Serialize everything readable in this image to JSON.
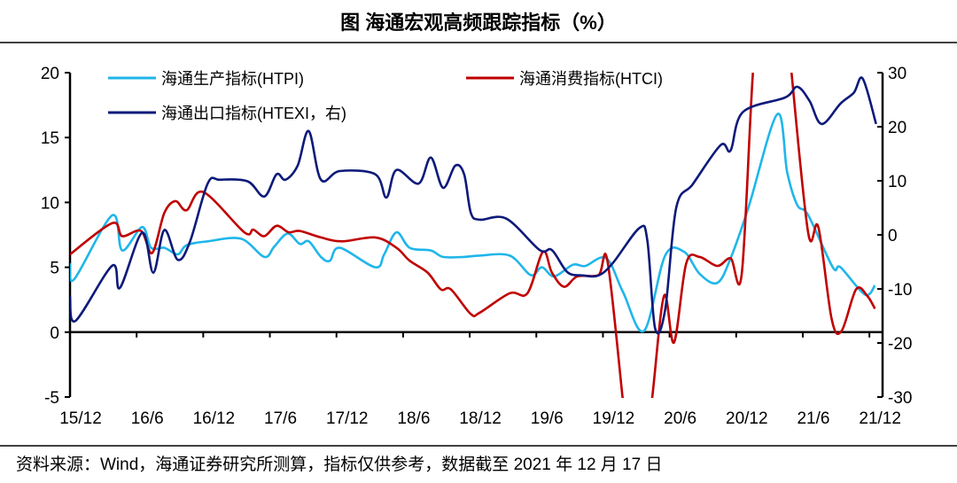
{
  "title": "图  海通宏观高频跟踪指标（%）",
  "source": "资料来源：Wind，海通证券研究所测算，指标仅供参考，数据截至 2021 年 12 月 17 日",
  "chart_data": {
    "type": "line",
    "title": "图  海通宏观高频跟踪指标（%）",
    "x_unit": "months since 2015-12",
    "xlim": [
      0,
      72.6
    ],
    "x_ticks": [
      0,
      6,
      12,
      18,
      24,
      30,
      36,
      42,
      48,
      54,
      60,
      66,
      72
    ],
    "x_tick_labels": [
      "15/12",
      "16/6",
      "16/12",
      "17/6",
      "17/12",
      "18/6",
      "18/12",
      "19/6",
      "19/12",
      "20/6",
      "20/12",
      "21/6",
      "21/12"
    ],
    "y_left": {
      "lim": [
        -5,
        20
      ],
      "ticks": [
        -5,
        0,
        5,
        10,
        15,
        20
      ],
      "tick_labels": [
        "-5",
        "0",
        "5",
        "10",
        "15",
        "20"
      ]
    },
    "y_right": {
      "lim": [
        -30,
        30
      ],
      "ticks": [
        -30,
        -20,
        -10,
        0,
        10,
        20,
        30
      ],
      "tick_labels": [
        "-30",
        "-20",
        "-10",
        "0",
        "10",
        "20",
        "30"
      ]
    },
    "legend_position": "top",
    "grid": false,
    "series": [
      {
        "name": "海通生产指标(HTPI)",
        "axis": "left",
        "color": "#1fb6ea",
        "points": [
          [
            0,
            5.3
          ],
          [
            0.4,
            4.1
          ],
          [
            3.8,
            9.0
          ],
          [
            4.7,
            6.3
          ],
          [
            6.5,
            8.1
          ],
          [
            7.3,
            6.5
          ],
          [
            8.5,
            6.5
          ],
          [
            9.7,
            6.0
          ],
          [
            10.5,
            6.7
          ],
          [
            12.4,
            7.0
          ],
          [
            15.4,
            7.2
          ],
          [
            17.5,
            5.8
          ],
          [
            18.4,
            6.6
          ],
          [
            19.6,
            7.6
          ],
          [
            20.7,
            6.8
          ],
          [
            21.5,
            7.0
          ],
          [
            22.6,
            5.8
          ],
          [
            23.4,
            5.5
          ],
          [
            24.3,
            6.5
          ],
          [
            27.5,
            5.0
          ],
          [
            28.3,
            6.0
          ],
          [
            29.4,
            7.7
          ],
          [
            30.6,
            6.5
          ],
          [
            32.5,
            6.3
          ],
          [
            33.6,
            5.8
          ],
          [
            35.5,
            5.8
          ],
          [
            36.9,
            5.9
          ],
          [
            39.6,
            5.9
          ],
          [
            41.5,
            4.4
          ],
          [
            42.5,
            5.0
          ],
          [
            43.6,
            4.3
          ],
          [
            45.3,
            5.2
          ],
          [
            46.4,
            5.1
          ],
          [
            48.3,
            5.7
          ],
          [
            49.8,
            3.1
          ],
          [
            51.7,
            0.1
          ],
          [
            53.6,
            5.9
          ],
          [
            55.3,
            6.2
          ],
          [
            56.7,
            4.5
          ],
          [
            58.3,
            3.8
          ],
          [
            59.5,
            5.7
          ],
          [
            61.1,
            9.6
          ],
          [
            63.7,
            16.8
          ],
          [
            64.6,
            12.3
          ],
          [
            65.5,
            9.8
          ],
          [
            66.5,
            9.0
          ],
          [
            68.7,
            5.0
          ],
          [
            69.4,
            5.0
          ],
          [
            71.6,
            2.9
          ],
          [
            72.5,
            3.6
          ]
        ]
      },
      {
        "name": "海通消费指标(HTCI)",
        "axis": "left",
        "color": "#c00000",
        "points": [
          [
            0,
            6.0
          ],
          [
            3.8,
            8.4
          ],
          [
            4.7,
            7.4
          ],
          [
            6.4,
            7.8
          ],
          [
            7.4,
            6.1
          ],
          [
            8.5,
            9.2
          ],
          [
            9.5,
            10.1
          ],
          [
            10.5,
            9.4
          ],
          [
            12.0,
            10.8
          ],
          [
            15.7,
            7.7
          ],
          [
            16.5,
            7.9
          ],
          [
            17.5,
            7.4
          ],
          [
            18.6,
            8.2
          ],
          [
            19.7,
            7.7
          ],
          [
            20.7,
            7.8
          ],
          [
            22.6,
            7.3
          ],
          [
            24.5,
            7.0
          ],
          [
            27.5,
            7.3
          ],
          [
            29.4,
            6.5
          ],
          [
            30.6,
            5.5
          ],
          [
            32.2,
            4.6
          ],
          [
            33.4,
            3.3
          ],
          [
            34.3,
            3.3
          ],
          [
            36.1,
            1.4
          ],
          [
            36.9,
            1.5
          ],
          [
            39.6,
            3.0
          ],
          [
            41.2,
            3.0
          ],
          [
            42.6,
            6.2
          ],
          [
            43.4,
            4.6
          ],
          [
            44.5,
            3.5
          ],
          [
            45.7,
            4.3
          ],
          [
            47.6,
            4.4
          ],
          [
            48.4,
            5.5
          ],
          [
            49.8,
            -5.3
          ],
          [
            50.6,
            -12
          ],
          [
            51.4,
            -12
          ],
          [
            52.4,
            -5.3
          ],
          [
            53.5,
            2.8
          ],
          [
            54.4,
            -0.8
          ],
          [
            55.5,
            5.3
          ],
          [
            56.7,
            5.8
          ],
          [
            58.3,
            5.1
          ],
          [
            59.5,
            5.7
          ],
          [
            60.5,
            4.5
          ],
          [
            61.5,
            19.9
          ],
          [
            62.5,
            30
          ],
          [
            64,
            30
          ],
          [
            65.0,
            19.9
          ],
          [
            66.5,
            7.6
          ],
          [
            67.4,
            8.1
          ],
          [
            68.6,
            1.0
          ],
          [
            69.5,
            0.1
          ],
          [
            70.8,
            3.3
          ],
          [
            71.8,
            2.8
          ],
          [
            72.5,
            1.8
          ]
        ]
      },
      {
        "name": "海通出口指标(HTEXI，右)",
        "axis": "right",
        "color": "#0d1a7a",
        "points": [
          [
            0,
            -11.4
          ],
          [
            0.5,
            -15.9
          ],
          [
            3.8,
            -5.7
          ],
          [
            4.5,
            -9.8
          ],
          [
            6.5,
            0.4
          ],
          [
            7.5,
            -7.0
          ],
          [
            8.5,
            0.9
          ],
          [
            9.7,
            -4.6
          ],
          [
            10.8,
            -1.3
          ],
          [
            12.4,
            9.5
          ],
          [
            13.5,
            10.2
          ],
          [
            16.0,
            9.9
          ],
          [
            17.5,
            7.1
          ],
          [
            18.6,
            11.2
          ],
          [
            19.4,
            10.2
          ],
          [
            20.5,
            12.8
          ],
          [
            21.5,
            19.2
          ],
          [
            22.6,
            10.2
          ],
          [
            24.3,
            11.8
          ],
          [
            27.5,
            11.2
          ],
          [
            28.5,
            6.9
          ],
          [
            29.4,
            12.0
          ],
          [
            31.4,
            9.5
          ],
          [
            32.5,
            14.3
          ],
          [
            33.6,
            8.7
          ],
          [
            34.7,
            12.8
          ],
          [
            35.5,
            11.2
          ],
          [
            36.1,
            4.1
          ],
          [
            36.9,
            2.8
          ],
          [
            39.3,
            3.0
          ],
          [
            42.3,
            -2.8
          ],
          [
            43.4,
            -2.8
          ],
          [
            44.8,
            -6.9
          ],
          [
            46.2,
            -7.5
          ],
          [
            47.6,
            -7.5
          ],
          [
            48.9,
            -5.2
          ],
          [
            51.3,
            1.3
          ],
          [
            52.0,
            -1.1
          ],
          [
            52.7,
            -17.3
          ],
          [
            53.6,
            -13.9
          ],
          [
            54.6,
            5.0
          ],
          [
            56.1,
            9.4
          ],
          [
            58.6,
            16.6
          ],
          [
            59.5,
            15.6
          ],
          [
            60.6,
            22.7
          ],
          [
            64.4,
            25.4
          ],
          [
            65.5,
            27.4
          ],
          [
            66.6,
            24.8
          ],
          [
            67.7,
            20.5
          ],
          [
            69.4,
            24.3
          ],
          [
            70.6,
            26.3
          ],
          [
            71.4,
            28.9
          ],
          [
            72.6,
            20.5
          ]
        ]
      }
    ]
  }
}
